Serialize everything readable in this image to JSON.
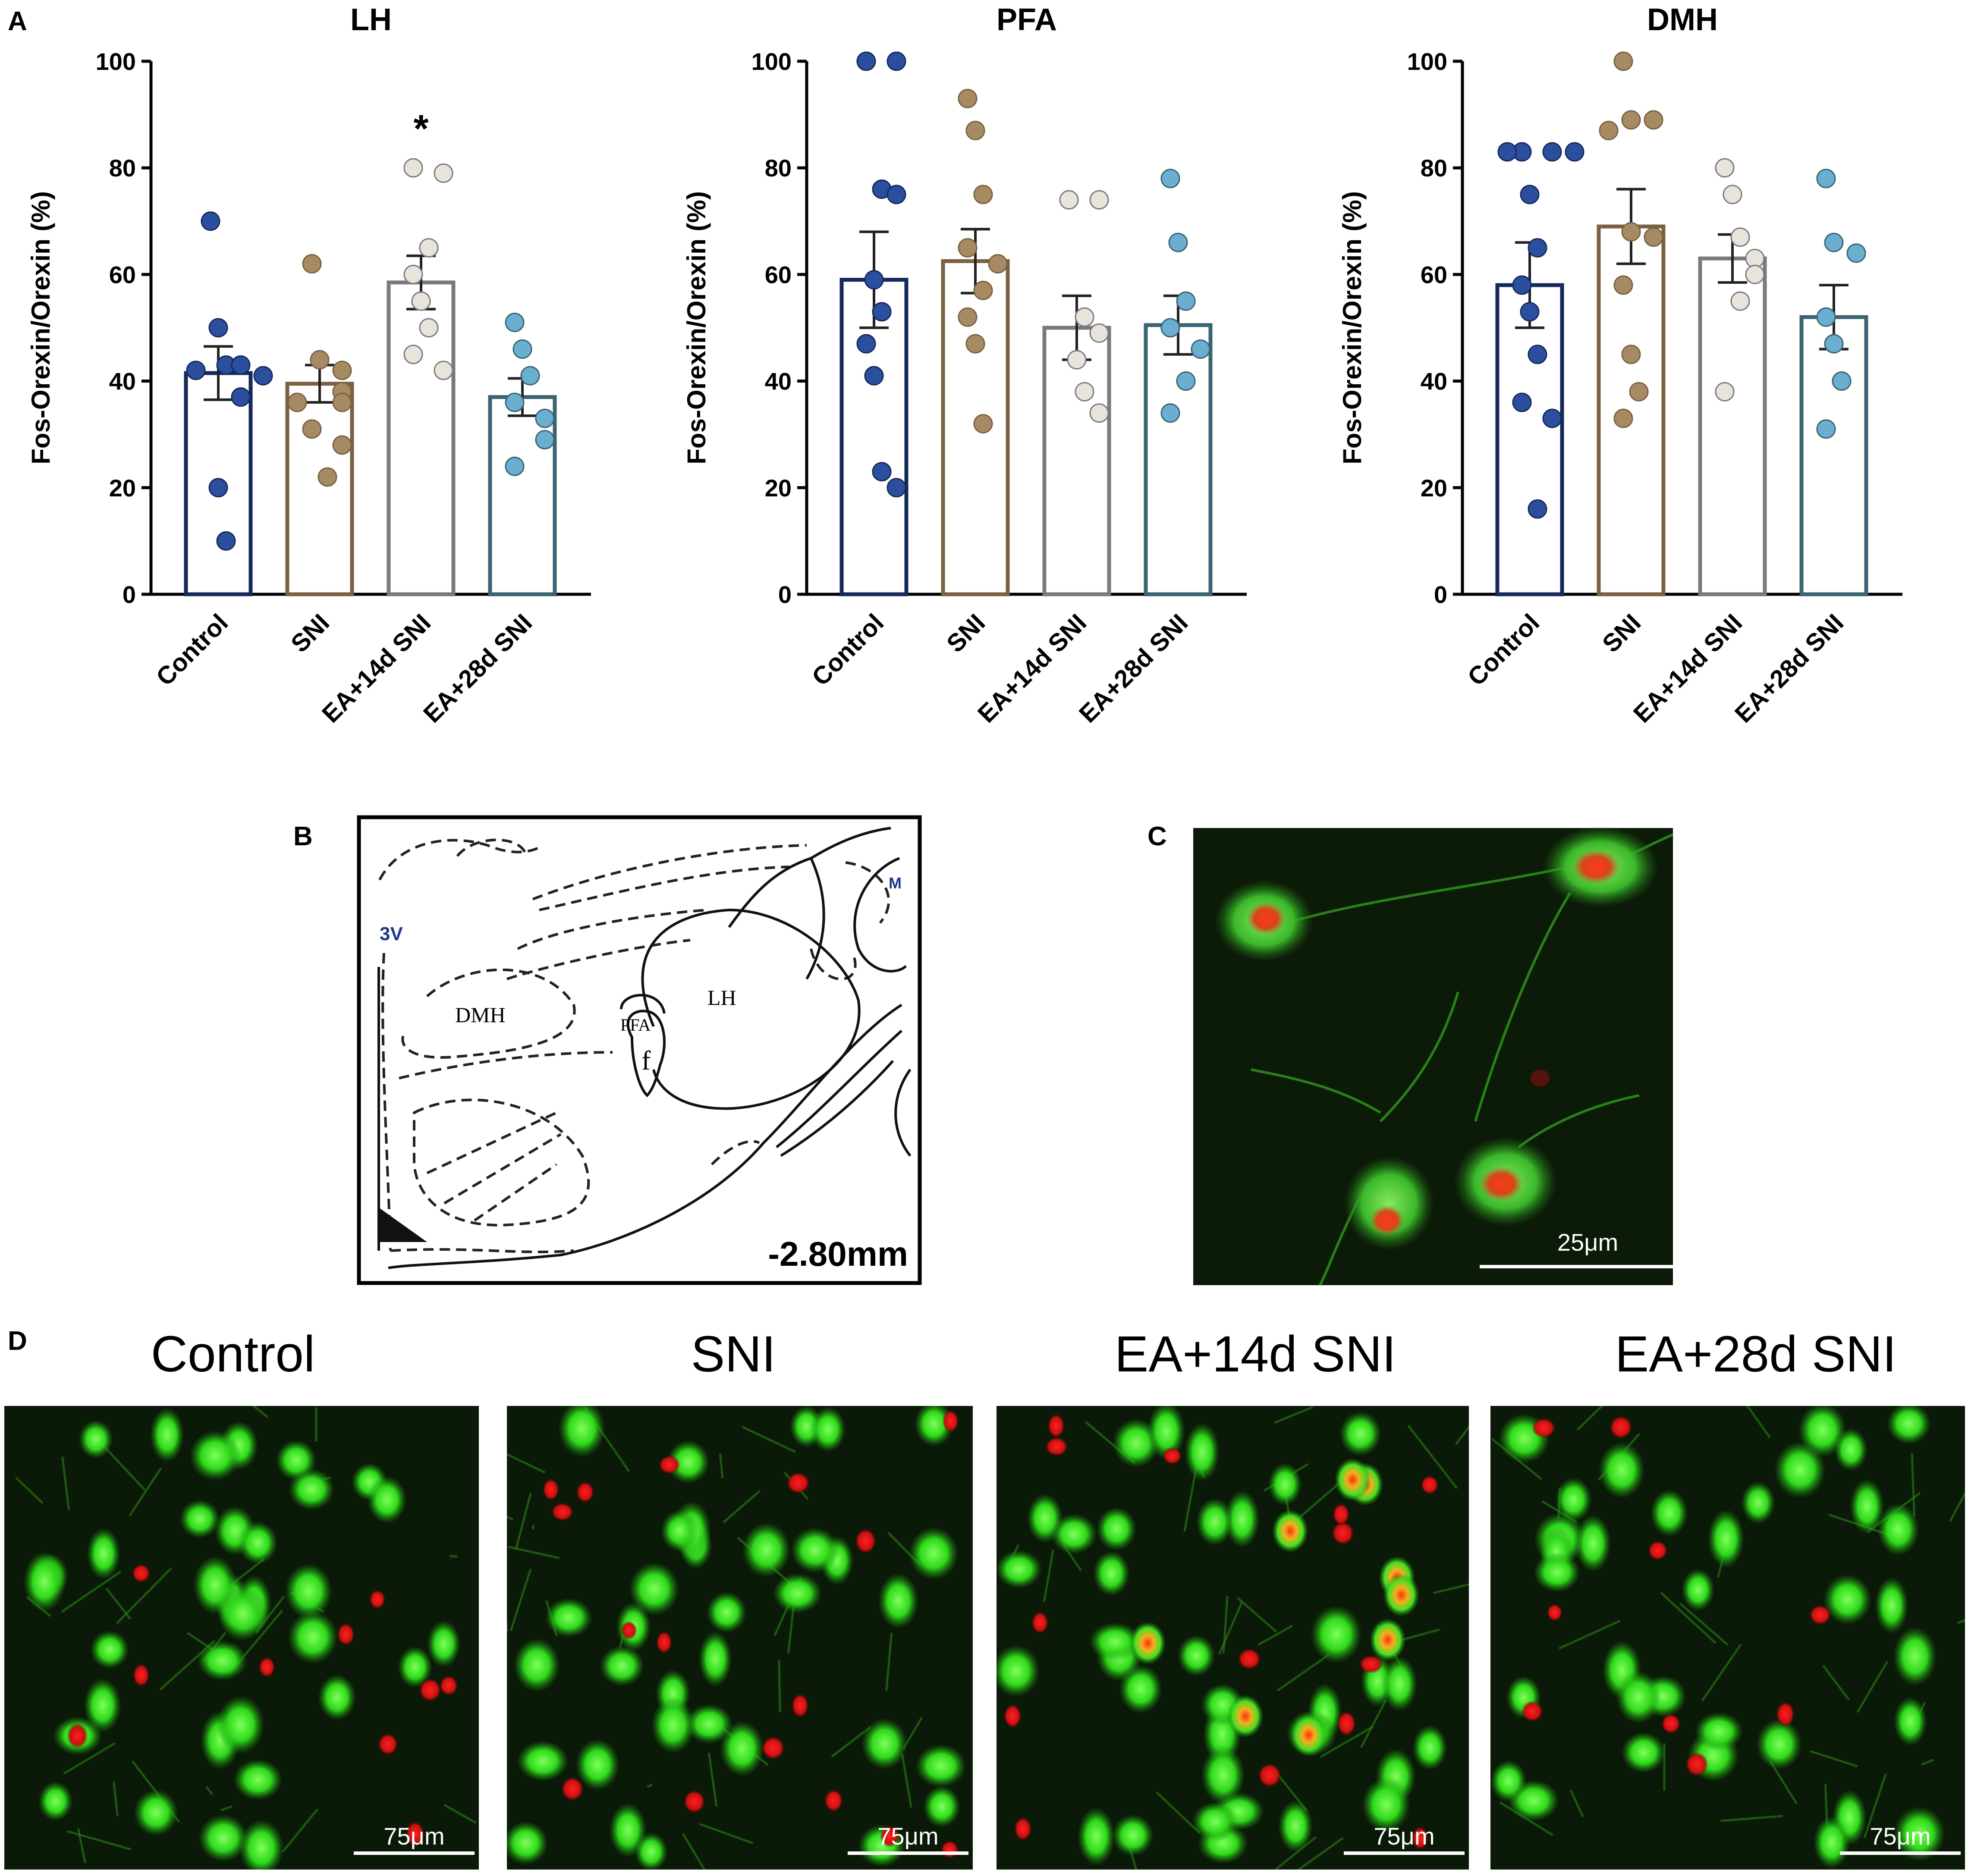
{
  "figure": {
    "panel_labels": {
      "a": "A",
      "b": "B",
      "c": "C",
      "d": "D"
    }
  },
  "colors": {
    "control": {
      "fill": "#2b4f9e",
      "bar": "#152a5a"
    },
    "sni": {
      "fill": "#a68a63",
      "bar": "#7a6240"
    },
    "ea14": {
      "fill": "#e8e4dc",
      "bar": "#7a7a7a"
    },
    "ea28": {
      "fill": "#6aaed0",
      "bar": "#3a6472"
    }
  },
  "chart_data": [
    {
      "type": "bar",
      "title": "LH",
      "ylabel": "Fos-Orexin/Orexin (%)",
      "ylim": [
        0,
        100
      ],
      "yticks": [
        "0",
        "20",
        "40",
        "60",
        "80",
        "100"
      ],
      "categories": [
        "Control",
        "SNI",
        "EA+14d SNI",
        "EA+28d SNI"
      ],
      "means": [
        41.5,
        39.5,
        58.5,
        37
      ],
      "sem": [
        5,
        3.5,
        5,
        3.5
      ],
      "points": [
        [
          70,
          50,
          43,
          43,
          42,
          41,
          37,
          20,
          10
        ],
        [
          62,
          44,
          42,
          38,
          36,
          36,
          31,
          28,
          22
        ],
        [
          80,
          79,
          65,
          60,
          55,
          50,
          45,
          42
        ],
        [
          51,
          46,
          41,
          36,
          33,
          29,
          24
        ]
      ],
      "annotations": [
        {
          "category": "EA+14d SNI",
          "text": "*"
        }
      ]
    },
    {
      "type": "bar",
      "title": "PFA",
      "ylabel": "Fos-Orexin/Orexin (%)",
      "ylim": [
        0,
        100
      ],
      "yticks": [
        "0",
        "20",
        "40",
        "60",
        "80",
        "100"
      ],
      "categories": [
        "Control",
        "SNI",
        "EA+14d SNI",
        "EA+28d SNI"
      ],
      "means": [
        59,
        62.5,
        50,
        50.5
      ],
      "sem": [
        9,
        6,
        6,
        5.5
      ],
      "points": [
        [
          100,
          100,
          76,
          75,
          59,
          53,
          47,
          41,
          23,
          20
        ],
        [
          93,
          87,
          75,
          65,
          62,
          57,
          52,
          47,
          32
        ],
        [
          74,
          74,
          52,
          49,
          44,
          38,
          34
        ],
        [
          78,
          66,
          55,
          50,
          46,
          40,
          34
        ]
      ],
      "annotations": []
    },
    {
      "type": "bar",
      "title": "DMH",
      "ylabel": "Fos-Orexin/Orexin (%)",
      "ylim": [
        0,
        100
      ],
      "yticks": [
        "0",
        "20",
        "40",
        "60",
        "80",
        "100"
      ],
      "categories": [
        "Control",
        "SNI",
        "EA+14d SNI",
        "EA+28d SNI"
      ],
      "means": [
        58,
        69,
        63,
        52
      ],
      "sem": [
        8,
        7,
        4.5,
        6
      ],
      "points": [
        [
          83,
          83,
          83,
          83,
          75,
          65,
          58,
          53,
          45,
          36,
          33,
          16
        ],
        [
          100,
          89,
          89,
          87,
          68,
          67,
          58,
          45,
          38,
          33
        ],
        [
          80,
          75,
          67,
          63,
          60,
          55,
          38
        ],
        [
          78,
          66,
          64,
          52,
          47,
          40,
          31
        ]
      ],
      "annotations": []
    }
  ],
  "panel_b": {
    "labels": {
      "dmh": "DMH",
      "pfa": "PFA",
      "lh": "LH",
      "fornix": "f",
      "ventricle": "3V",
      "edge": "M"
    },
    "coordinate": "-2.80mm"
  },
  "panel_c": {
    "scale_bar": "25μm"
  },
  "panel_d": {
    "images": [
      {
        "title": "Control",
        "scale_bar": "75μm"
      },
      {
        "title": "SNI",
        "scale_bar": "75μm"
      },
      {
        "title": "EA+14d SNI",
        "scale_bar": "75μm"
      },
      {
        "title": "EA+28d SNI",
        "scale_bar": "75μm"
      }
    ]
  }
}
